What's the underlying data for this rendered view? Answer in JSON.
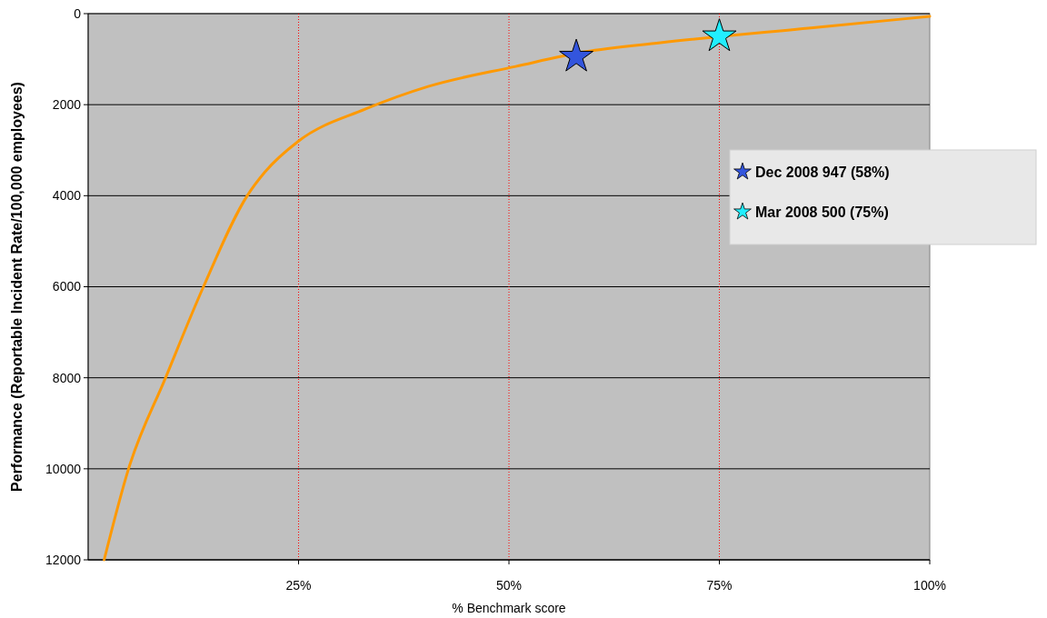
{
  "chart_data": {
    "type": "line",
    "xlabel": "% Benchmark score",
    "ylabel": "Performance (Reportable Incident Rate/100,000 employees)",
    "xlim": [
      0,
      100
    ],
    "xticks": [
      {
        "value": 25,
        "label": "25%"
      },
      {
        "value": 50,
        "label": "50%"
      },
      {
        "value": 75,
        "label": "75%"
      },
      {
        "value": 100,
        "label": "100%"
      }
    ],
    "ylim": [
      12000,
      0
    ],
    "yticks": [
      0,
      2000,
      4000,
      6000,
      8000,
      10000,
      12000
    ],
    "grid": "y",
    "legend": "right",
    "series": [
      {
        "color": "#ff9900",
        "marker": "none",
        "x": [
          1.9,
          4.8,
          9.2,
          13.7,
          18.9,
          21,
          25,
          32.9,
          40.4,
          50.8,
          59,
          68,
          86.7,
          100
        ],
        "values": [
          12000,
          10000,
          8000,
          6000,
          4000,
          3480,
          2800,
          2100,
          1600,
          1160,
          840,
          640,
          300,
          60
        ]
      },
      {
        "type": "scatter",
        "name": "Dec 2008 947 (58%)",
        "color": "#3355dd",
        "marker": "star",
        "x": [
          58
        ],
        "values": [
          947
        ]
      },
      {
        "type": "scatter",
        "name": "Mar 2008 500 (75%)",
        "color": "#22eeff",
        "marker": "star",
        "x": [
          75
        ],
        "values": [
          500
        ]
      }
    ],
    "ref_lines": [
      {
        "axis": "x",
        "value": 25,
        "color": "#ff0000",
        "line_style": "dotted"
      },
      {
        "axis": "x",
        "value": 50,
        "color": "#ff0000",
        "line_style": "dotted"
      },
      {
        "axis": "x",
        "value": 75,
        "color": "#ff0000",
        "line_style": "dotted"
      }
    ]
  }
}
